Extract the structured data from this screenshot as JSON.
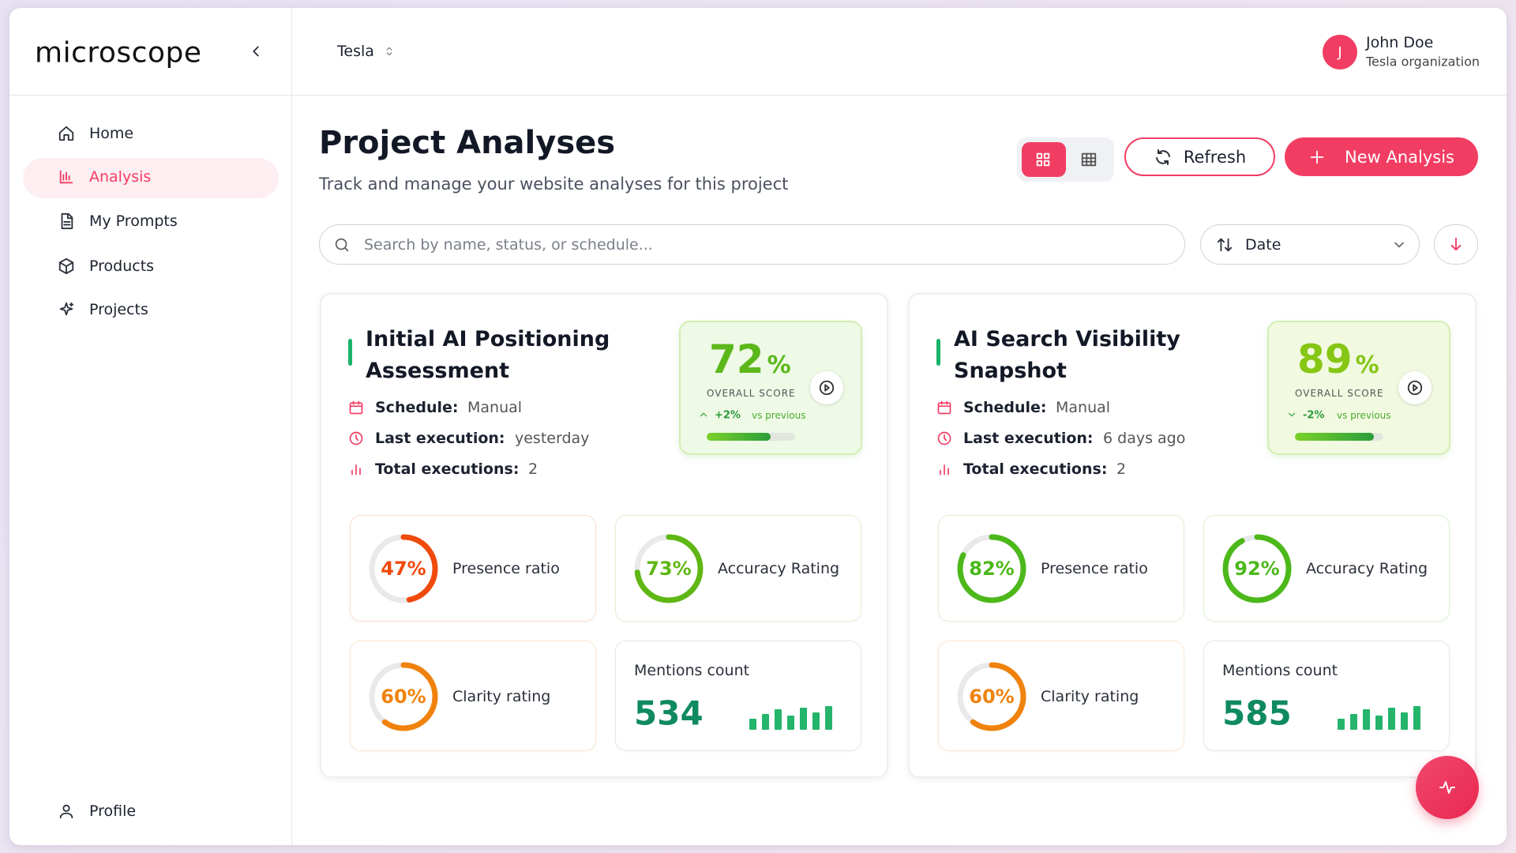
{
  "sidebar": {
    "logo": "microscope",
    "nav": [
      "Home",
      "Analysis",
      "My Prompts",
      "Products",
      "Projects"
    ],
    "active_index": 1,
    "profile": "Profile"
  },
  "header": {
    "project": "Tesla",
    "user": {
      "initial": "J",
      "name": "John Doe",
      "org": "Tesla organization"
    }
  },
  "page": {
    "title": "Project Analyses",
    "subtitle": "Track and manage your website analyses for this project",
    "refresh": "Refresh",
    "new_analysis": "New Analysis",
    "search_placeholder": "Search by name, status, or schedule...",
    "sort": "Date"
  },
  "analyses": [
    {
      "title": "Initial AI Positioning Assessment",
      "score": 72,
      "score_unit": "%",
      "score_color": "#5cb81a",
      "score_label": "OVERALL SCORE",
      "change": "+2%",
      "change_note": "vs previous",
      "trend": "up",
      "schedule_label": "Schedule:",
      "schedule": "Manual",
      "last_label": "Last execution:",
      "last": "yesterday",
      "total_label": "Total executions:",
      "total": 2,
      "metrics": [
        {
          "label": "Presence ratio",
          "value": 47,
          "value_label": "47%",
          "color": "#f04a0c"
        },
        {
          "label": "Accuracy Rating",
          "value": 73,
          "value_label": "73%",
          "color": "#5fb714"
        },
        {
          "label": "Clarity rating",
          "value": 60,
          "value_label": "60%",
          "color": "#f0820c"
        }
      ],
      "mentions_label": "Mentions count",
      "mentions": 534
    },
    {
      "title": "AI Search Visibility Snapshot",
      "score": 89,
      "score_unit": "%",
      "score_color": "#86c614",
      "score_label": "OVERALL SCORE",
      "change": "-2%",
      "change_note": "vs previous",
      "trend": "down",
      "schedule_label": "Schedule:",
      "schedule": "Manual",
      "last_label": "Last execution:",
      "last": "6 days ago",
      "total_label": "Total executions:",
      "total": 2,
      "metrics": [
        {
          "label": "Presence ratio",
          "value": 82,
          "value_label": "82%",
          "color": "#4cb81a"
        },
        {
          "label": "Accuracy Rating",
          "value": 92,
          "value_label": "92%",
          "color": "#4cb81a"
        },
        {
          "label": "Clarity rating",
          "value": 60,
          "value_label": "60%",
          "color": "#f0820c"
        }
      ],
      "mentions_label": "Mentions count",
      "mentions": 585
    }
  ]
}
